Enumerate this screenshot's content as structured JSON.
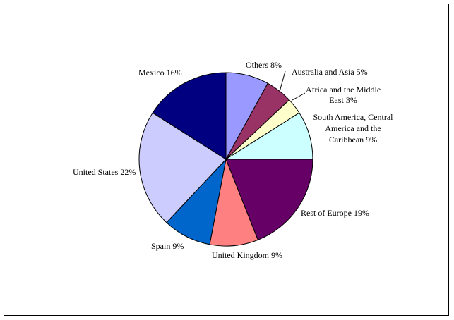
{
  "chart_data": {
    "type": "pie",
    "title": "",
    "slices": [
      {
        "label": "Others 8%",
        "value": 8,
        "color": "#9999ff"
      },
      {
        "label": "Australia and Asia  5%",
        "value": 5,
        "color": "#993366"
      },
      {
        "label": "Africa and the Middle East 3%",
        "value": 3,
        "color": "#ffffcc"
      },
      {
        "label": "South America, Central America and the Caribbean 9%",
        "value": 9,
        "color": "#ccffff"
      },
      {
        "label": "Rest of Europe 19%",
        "value": 19,
        "color": "#660066"
      },
      {
        "label": "United Kingdom 9%",
        "value": 9,
        "color": "#ff8080"
      },
      {
        "label": "Spain 9%",
        "value": 9,
        "color": "#0066cc"
      },
      {
        "label": "United States 22%",
        "value": 22,
        "color": "#ccccff"
      },
      {
        "label": "Mexico 16%",
        "value": 16,
        "color": "#000080"
      }
    ]
  }
}
